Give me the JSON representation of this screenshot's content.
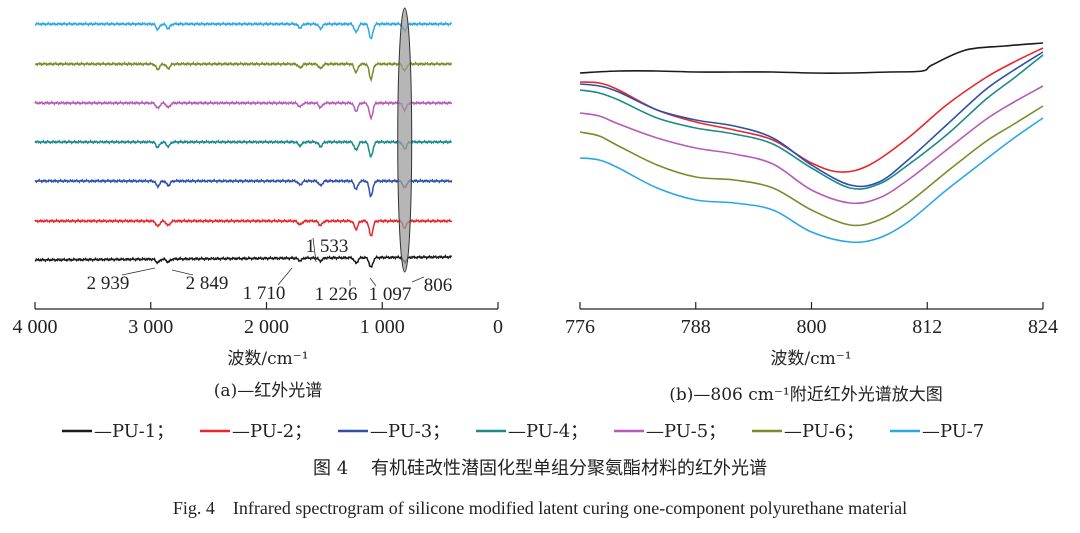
{
  "chart_data": [
    {
      "type": "line",
      "panel_caption": "(a)—红外光谱",
      "xlabel": "波数/cm⁻¹",
      "xlim": [
        4000,
        0
      ],
      "xticks": [
        "4 000",
        "3 000",
        "2 000",
        "1 000",
        "0"
      ],
      "xtick_values": [
        4000,
        3000,
        2000,
        1000,
        0
      ],
      "x_range_plotted": [
        4000,
        400
      ],
      "stacked_offset": true,
      "highlight_band_center": 806,
      "peak_labels": [
        {
          "text": "2 939",
          "x": 2939
        },
        {
          "text": "2 849",
          "x": 2849
        },
        {
          "text": "1 710",
          "x": 1710
        },
        {
          "text": "1 533",
          "x": 1533
        },
        {
          "text": "1 226",
          "x": 1226
        },
        {
          "text": "1 097",
          "x": 1097
        },
        {
          "text": "806",
          "x": 806
        }
      ],
      "series": [
        {
          "name": "PU-1",
          "color": "#1a1a1a"
        },
        {
          "name": "PU-2",
          "color": "#e8262b"
        },
        {
          "name": "PU-3",
          "color": "#2f4fa8"
        },
        {
          "name": "PU-4",
          "color": "#1b8a8a"
        },
        {
          "name": "PU-5",
          "color": "#b65bb8"
        },
        {
          "name": "PU-6",
          "color": "#7d8a2a"
        },
        {
          "name": "PU-7",
          "color": "#2aa7e6"
        }
      ],
      "band_peaks": [
        {
          "x": 2939,
          "depth": 0.35
        },
        {
          "x": 2849,
          "depth": 0.3
        },
        {
          "x": 1710,
          "depth": 0.25
        },
        {
          "x": 1533,
          "depth": 0.3
        },
        {
          "x": 1226,
          "depth": 0.55
        },
        {
          "x": 1097,
          "depth": 1.0
        },
        {
          "x": 806,
          "depth": 0.45
        }
      ]
    },
    {
      "type": "line",
      "panel_caption": "(b)—806 cm⁻¹附近红外光谱放大图",
      "xlabel": "波数/cm⁻¹",
      "xlim": [
        776,
        824
      ],
      "xticks": [
        "776",
        "788",
        "800",
        "812",
        "824"
      ],
      "xtick_values": [
        776,
        788,
        800,
        812,
        824
      ],
      "series": [
        {
          "name": "PU-1",
          "color": "#1a1a1a",
          "x": [
            776,
            780,
            784,
            788,
            792,
            796,
            800,
            804,
            808,
            811.5,
            812.5,
            816,
            820,
            824
          ],
          "y": [
            73,
            71,
            71,
            72,
            72,
            72,
            73,
            73,
            72,
            71,
            65,
            50,
            46,
            43
          ]
        },
        {
          "name": "PU-2",
          "color": "#e8262b",
          "x": [
            776,
            778,
            780,
            784,
            788,
            792,
            796,
            800,
            803,
            806,
            810,
            814,
            818,
            821,
            824
          ],
          "y": [
            82,
            83,
            90,
            110,
            122,
            130,
            140,
            163,
            172,
            165,
            138,
            105,
            78,
            62,
            48
          ]
        },
        {
          "name": "PU-3",
          "color": "#2f4fa8",
          "x": [
            776,
            778,
            780,
            784,
            788,
            792,
            796,
            800,
            804,
            807,
            810,
            814,
            818,
            821,
            824
          ],
          "y": [
            84,
            86,
            92,
            110,
            120,
            126,
            138,
            165,
            185,
            182,
            160,
            125,
            90,
            70,
            52
          ]
        },
        {
          "name": "PU-4",
          "color": "#1b8a8a",
          "x": [
            776,
            778,
            780,
            784,
            788,
            792,
            796,
            800,
            804,
            807,
            810,
            814,
            818,
            821,
            824
          ],
          "y": [
            90,
            93,
            100,
            118,
            128,
            134,
            144,
            168,
            188,
            184,
            165,
            135,
            100,
            78,
            55
          ]
        },
        {
          "name": "PU-5",
          "color": "#b65bb8",
          "x": [
            776,
            778,
            780,
            784,
            788,
            792,
            796,
            800,
            804,
            807,
            810,
            814,
            818,
            821,
            824
          ],
          "y": [
            113,
            116,
            124,
            138,
            148,
            154,
            164,
            190,
            203,
            198,
            180,
            150,
            120,
            102,
            86
          ]
        },
        {
          "name": "PU-6",
          "color": "#7d8a2a",
          "x": [
            776,
            778,
            780,
            784,
            788,
            792,
            796,
            800,
            804,
            807,
            810,
            814,
            818,
            821,
            824
          ],
          "y": [
            132,
            136,
            146,
            165,
            177,
            180,
            188,
            210,
            225,
            220,
            203,
            172,
            142,
            124,
            106
          ]
        },
        {
          "name": "PU-7",
          "color": "#2aa7e6",
          "x": [
            776,
            778,
            780,
            784,
            788,
            792,
            796,
            800,
            804,
            807,
            810,
            814,
            818,
            821,
            824
          ],
          "y": [
            158,
            160,
            168,
            188,
            200,
            203,
            210,
            232,
            242,
            238,
            222,
            190,
            160,
            138,
            118
          ]
        }
      ]
    }
  ],
  "legend": {
    "entries": [
      {
        "label": "—PU-1；",
        "color": "#1a1a1a"
      },
      {
        "label": "—PU-2；",
        "color": "#e8262b"
      },
      {
        "label": "—PU-3；",
        "color": "#2f4fa8"
      },
      {
        "label": "—PU-4；",
        "color": "#1b8a8a"
      },
      {
        "label": "—PU-5；",
        "color": "#b65bb8"
      },
      {
        "label": "—PU-6；",
        "color": "#7d8a2a"
      },
      {
        "label": "—PU-7",
        "color": "#2aa7e6"
      }
    ]
  },
  "figure": {
    "caption_zh": "图 4    有机硅改性潜固化型单组分聚氨酯材料的红外光谱",
    "caption_en": "Fig. 4    Infrared spectrogram of silicone modified latent curing one-component polyurethane material"
  }
}
